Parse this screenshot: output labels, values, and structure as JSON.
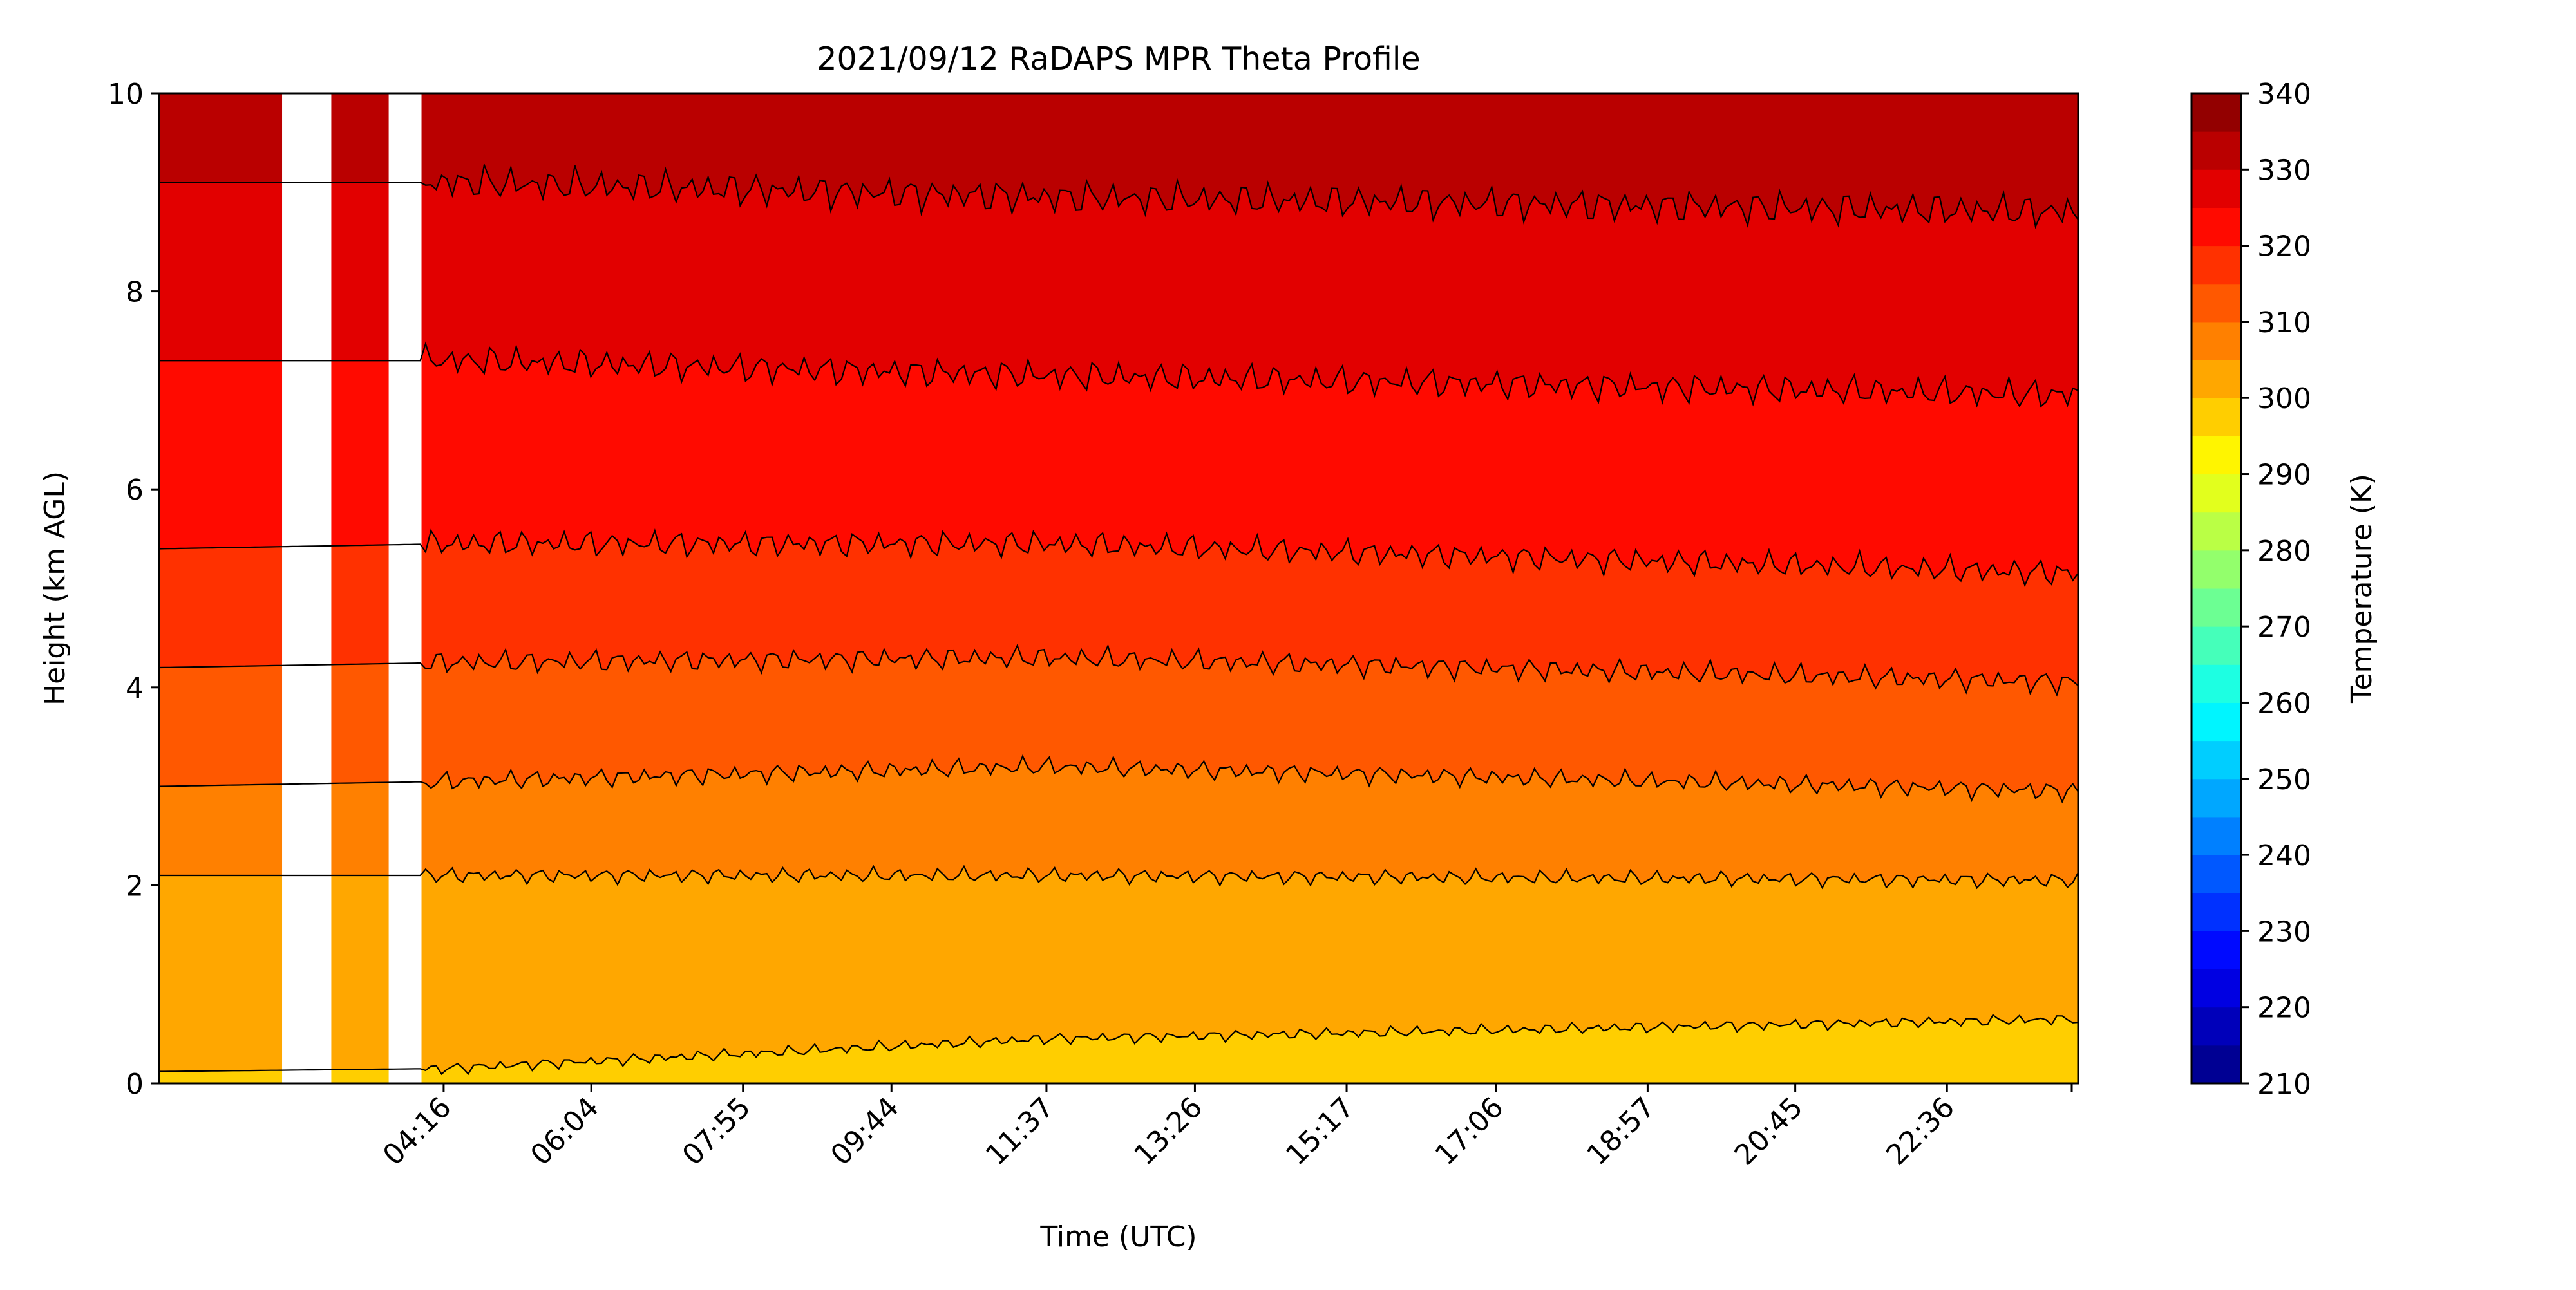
{
  "chart_data": {
    "type": "contourf",
    "title": "2021/09/12 RaDAPS MPR Theta Profile",
    "xlabel": "Time (UTC)",
    "ylabel": "Height (km AGL)",
    "x_ticks": [
      "04:16",
      "06:04",
      "07:55",
      "09:44",
      "11:37",
      "13:26",
      "15:17",
      "17:06",
      "18:57",
      "20:45",
      "22:36"
    ],
    "x_tick_hours": [
      4.27,
      6.07,
      7.92,
      9.73,
      11.62,
      13.43,
      15.28,
      17.1,
      18.95,
      20.75,
      22.6
    ],
    "xlim_hours": [
      0.8,
      24.2
    ],
    "ylim": [
      0,
      10
    ],
    "y_ticks": [
      0,
      2,
      4,
      6,
      8,
      10
    ],
    "colorbar": {
      "label": "Temperature (K)",
      "ticks": [
        210,
        220,
        230,
        240,
        250,
        260,
        270,
        280,
        290,
        300,
        310,
        320,
        330,
        340
      ],
      "levels": [
        210,
        215,
        220,
        225,
        230,
        235,
        240,
        245,
        250,
        255,
        260,
        265,
        270,
        275,
        280,
        285,
        290,
        295,
        300,
        305,
        310,
        315,
        320,
        325,
        330,
        335,
        340
      ],
      "colormap": "jet"
    },
    "isotherm_heights_km": [
      {
        "level": 300,
        "first_segment": 0.12,
        "early": 0.15,
        "mid": 0.45,
        "late": 0.65
      },
      {
        "level": 305,
        "first_segment": 2.1,
        "early": 2.1,
        "mid": 2.1,
        "late": 2.05
      },
      {
        "level": 310,
        "first_segment": 3.0,
        "early": 3.05,
        "mid": 3.2,
        "late": 2.95
      },
      {
        "level": 315,
        "first_segment": 4.2,
        "early": 4.25,
        "mid": 4.3,
        "late": 4.05
      },
      {
        "level": 320,
        "first_segment": 5.4,
        "early": 5.45,
        "mid": 5.45,
        "late": 5.15
      },
      {
        "level": 325,
        "first_segment": 7.3,
        "early": 7.3,
        "mid": 7.15,
        "late": 6.95
      },
      {
        "level": 330,
        "first_segment": 9.1,
        "early": 9.1,
        "mid": 8.95,
        "late": 8.8
      }
    ],
    "data_gaps_hours": [
      [
        2.3,
        2.9
      ],
      [
        3.6,
        4.0
      ]
    ]
  }
}
